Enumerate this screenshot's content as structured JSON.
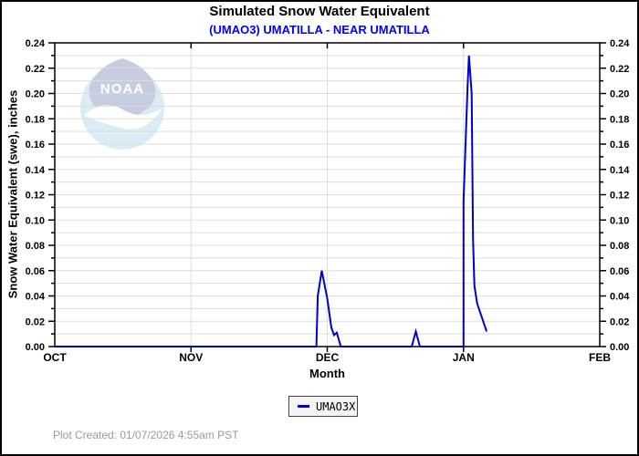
{
  "title": "Simulated Snow Water Equivalent",
  "subtitle": "(UMAO3) UMATILLA - NEAR UMATILLA",
  "colors": {
    "line": "#0000CC",
    "subtitle": "#0000FF",
    "grid": "#DDDDDD",
    "axis": "#000000",
    "footer": "#999999"
  },
  "watermark": {
    "text": "NOAA"
  },
  "footer": {
    "plot_created": "Plot Created: 01/07/2026 4:55am PST"
  },
  "chart_data": {
    "type": "line",
    "title": "Simulated Snow Water Equivalent",
    "subtitle": "(UMAO3) UMATILLA - NEAR UMATILLA",
    "xlabel": "Month",
    "ylabel": "Snow Water Equivalent (swe),  inches",
    "x_tick_labels": [
      "OCT",
      "NOV",
      "DEC",
      "JAN",
      "FEB"
    ],
    "x_unit": "months from Oct 1 (OCT=0, NOV=1, DEC=2, JAN=3, FEB=4)",
    "y_tick_labels": [
      "0.00",
      "0.02",
      "0.04",
      "0.06",
      "0.08",
      "0.10",
      "0.12",
      "0.14",
      "0.16",
      "0.18",
      "0.20",
      "0.22",
      "0.24"
    ],
    "ylim": [
      0,
      0.24
    ],
    "y_major_step": 0.02,
    "y_minor_step": 0.01,
    "grid": "on",
    "legend_position": "bottom-center",
    "series": [
      {
        "name": "UMAO3X",
        "color": "#0000CC",
        "points": [
          [
            0.0,
            0.0
          ],
          [
            1.92,
            0.0
          ],
          [
            1.93,
            0.04
          ],
          [
            1.96,
            0.06
          ],
          [
            2.0,
            0.038
          ],
          [
            2.03,
            0.015
          ],
          [
            2.05,
            0.009
          ],
          [
            2.07,
            0.011
          ],
          [
            2.1,
            0.0
          ],
          [
            2.62,
            0.0
          ],
          [
            2.65,
            0.012
          ],
          [
            2.68,
            0.0
          ],
          [
            3.0,
            0.0
          ],
          [
            3.0,
            0.115
          ],
          [
            3.03,
            0.205
          ],
          [
            3.04,
            0.23
          ],
          [
            3.06,
            0.2
          ],
          [
            3.07,
            0.085
          ],
          [
            3.08,
            0.048
          ],
          [
            3.1,
            0.034
          ],
          [
            3.17,
            0.012
          ]
        ]
      }
    ]
  }
}
